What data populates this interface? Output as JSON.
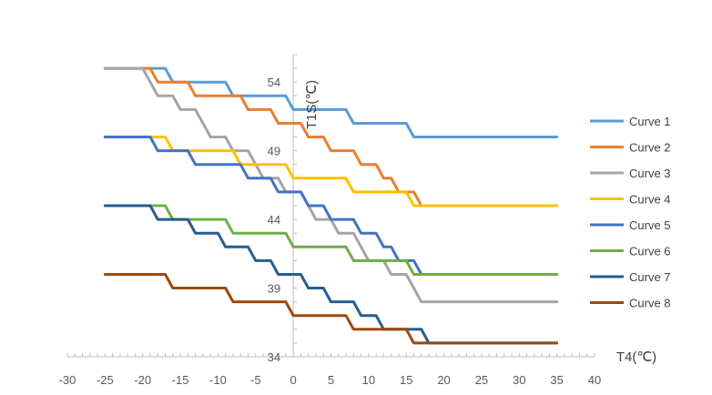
{
  "chart_data": {
    "type": "line",
    "xlabel": "T4(℃)",
    "ylabel": "T1S(℃)",
    "xlim": [
      -30,
      40
    ],
    "ylim": [
      34,
      56
    ],
    "x_ticks": [
      -30,
      -25,
      -20,
      -15,
      -10,
      -5,
      0,
      5,
      10,
      15,
      20,
      25,
      30,
      35,
      40
    ],
    "y_ticks": [
      34,
      39,
      44,
      49,
      54
    ],
    "grid": false,
    "legend_position": "right",
    "series": [
      {
        "name": "Curve 1",
        "color": "#5B9BD5",
        "points": [
          [
            -25,
            55
          ],
          [
            -17,
            55
          ],
          [
            -16,
            54
          ],
          [
            -9,
            54
          ],
          [
            -8,
            53
          ],
          [
            -1,
            53
          ],
          [
            0,
            52
          ],
          [
            7,
            52
          ],
          [
            8,
            51
          ],
          [
            15,
            51
          ],
          [
            16,
            50
          ],
          [
            35,
            50
          ]
        ]
      },
      {
        "name": "Curve 2",
        "color": "#ED7D31",
        "points": [
          [
            -25,
            55
          ],
          [
            -19,
            55
          ],
          [
            -18,
            54
          ],
          [
            -14,
            54
          ],
          [
            -13,
            53
          ],
          [
            -7,
            53
          ],
          [
            -6,
            52
          ],
          [
            -3,
            52
          ],
          [
            -2,
            51
          ],
          [
            1,
            51
          ],
          [
            2,
            50
          ],
          [
            4,
            50
          ],
          [
            5,
            49
          ],
          [
            8,
            49
          ],
          [
            9,
            48
          ],
          [
            11,
            48
          ],
          [
            12,
            47
          ],
          [
            13,
            47
          ],
          [
            14,
            46
          ],
          [
            16,
            46
          ],
          [
            17,
            45
          ],
          [
            35,
            45
          ]
        ]
      },
      {
        "name": "Curve 3",
        "color": "#A5A5A5",
        "points": [
          [
            -25,
            55
          ],
          [
            -20,
            55
          ],
          [
            -19,
            54
          ],
          [
            -18,
            53
          ],
          [
            -16,
            53
          ],
          [
            -15,
            52
          ],
          [
            -13,
            52
          ],
          [
            -12,
            51
          ],
          [
            -11,
            50
          ],
          [
            -9,
            50
          ],
          [
            -8,
            49
          ],
          [
            -6,
            49
          ],
          [
            -5,
            48
          ],
          [
            -4,
            47
          ],
          [
            -2,
            47
          ],
          [
            -1,
            46
          ],
          [
            1,
            46
          ],
          [
            2,
            45
          ],
          [
            3,
            44
          ],
          [
            5,
            44
          ],
          [
            6,
            43
          ],
          [
            8,
            43
          ],
          [
            9,
            42
          ],
          [
            10,
            41
          ],
          [
            12,
            41
          ],
          [
            13,
            40
          ],
          [
            15,
            40
          ],
          [
            16,
            39
          ],
          [
            17,
            38
          ],
          [
            35,
            38
          ]
        ]
      },
      {
        "name": "Curve 4",
        "color": "#FFC000",
        "points": [
          [
            -25,
            50
          ],
          [
            -17,
            50
          ],
          [
            -16,
            49
          ],
          [
            -8,
            49
          ],
          [
            -7,
            48
          ],
          [
            -1,
            48
          ],
          [
            0,
            47
          ],
          [
            7,
            47
          ],
          [
            8,
            46
          ],
          [
            15,
            46
          ],
          [
            16,
            45
          ],
          [
            35,
            45
          ]
        ]
      },
      {
        "name": "Curve 5",
        "color": "#4472C4",
        "points": [
          [
            -25,
            50
          ],
          [
            -19,
            50
          ],
          [
            -18,
            49
          ],
          [
            -14,
            49
          ],
          [
            -13,
            48
          ],
          [
            -7,
            48
          ],
          [
            -6,
            47
          ],
          [
            -3,
            47
          ],
          [
            -2,
            46
          ],
          [
            1,
            46
          ],
          [
            2,
            45
          ],
          [
            4,
            45
          ],
          [
            5,
            44
          ],
          [
            8,
            44
          ],
          [
            9,
            43
          ],
          [
            11,
            43
          ],
          [
            12,
            42
          ],
          [
            13,
            42
          ],
          [
            14,
            41
          ],
          [
            16,
            41
          ],
          [
            17,
            40
          ],
          [
            35,
            40
          ]
        ]
      },
      {
        "name": "Curve 6",
        "color": "#70AD47",
        "points": [
          [
            -25,
            45
          ],
          [
            -17,
            45
          ],
          [
            -16,
            44
          ],
          [
            -9,
            44
          ],
          [
            -8,
            43
          ],
          [
            -1,
            43
          ],
          [
            0,
            42
          ],
          [
            7,
            42
          ],
          [
            8,
            41
          ],
          [
            15,
            41
          ],
          [
            16,
            40
          ],
          [
            35,
            40
          ]
        ]
      },
      {
        "name": "Curve 7",
        "color": "#255E91",
        "points": [
          [
            -25,
            45
          ],
          [
            -19,
            45
          ],
          [
            -18,
            44
          ],
          [
            -14,
            44
          ],
          [
            -13,
            43
          ],
          [
            -10,
            43
          ],
          [
            -9,
            42
          ],
          [
            -6,
            42
          ],
          [
            -5,
            41
          ],
          [
            -3,
            41
          ],
          [
            -2,
            40
          ],
          [
            1,
            40
          ],
          [
            2,
            39
          ],
          [
            4,
            39
          ],
          [
            5,
            38
          ],
          [
            8,
            38
          ],
          [
            9,
            37
          ],
          [
            11,
            37
          ],
          [
            12,
            36
          ],
          [
            17,
            36
          ],
          [
            18,
            35
          ],
          [
            35,
            35
          ]
        ]
      },
      {
        "name": "Curve 8",
        "color": "#9E480E",
        "points": [
          [
            -25,
            40
          ],
          [
            -17,
            40
          ],
          [
            -16,
            39
          ],
          [
            -9,
            39
          ],
          [
            -8,
            38
          ],
          [
            -1,
            38
          ],
          [
            0,
            37
          ],
          [
            7,
            37
          ],
          [
            8,
            36
          ],
          [
            15,
            36
          ],
          [
            16,
            35
          ],
          [
            35,
            35
          ]
        ]
      }
    ]
  }
}
